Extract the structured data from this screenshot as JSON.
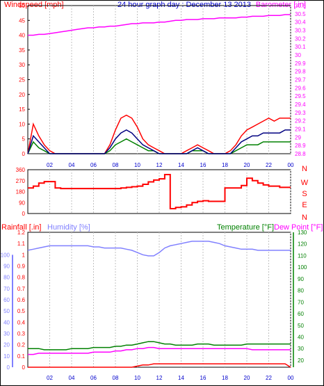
{
  "title": "24 hour graph day : December 13 2013",
  "colors": {
    "wind": "#ff0000",
    "gust": "#008000",
    "avg": "#000080",
    "baro": "#ff00ff",
    "dir": "#ff0000",
    "rain": "#ff0000",
    "humidity": "#8080ff",
    "temp": "#008000",
    "dew": "#ff00ff",
    "axis_blue": "#0000cc",
    "rain_axis": "#ff0000",
    "grid": "#c0c0c0"
  },
  "x_ticks": [
    "02",
    "04",
    "06",
    "08",
    "10",
    "12",
    "14",
    "16",
    "18",
    "20",
    "22",
    "00"
  ],
  "chart_data": [
    {
      "type": "line",
      "title": "",
      "left_axis_label": "Windspeed [mph]",
      "right_axis_label": "Barometer [.in]",
      "left_ticks": [
        "0",
        "5",
        "10",
        "15",
        "20",
        "25",
        "30",
        "35",
        "40",
        "45",
        "50"
      ],
      "right_ticks": [
        "28.8",
        "28.9",
        "29",
        "29.1",
        "29.2",
        "29.3",
        "29.4",
        "29.5",
        "29.6",
        "29.7",
        "29.8",
        "29.9",
        "30",
        "30.1",
        "30.2",
        "30.3",
        "30.4",
        "30.5",
        "30.6"
      ],
      "ylim_left": [
        0,
        50
      ],
      "ylim_right": [
        28.8,
        30.6
      ],
      "x_hours": [
        0,
        0.5,
        1,
        1.5,
        2,
        2.5,
        3,
        3.5,
        4,
        4.5,
        5,
        5.5,
        6,
        6.5,
        7,
        7.5,
        8,
        8.5,
        9,
        9.5,
        10,
        10.5,
        11,
        11.5,
        12,
        12.5,
        13,
        13.5,
        14,
        14.5,
        15,
        15.5,
        16,
        16.5,
        17,
        17.5,
        18,
        18.5,
        19,
        19.5,
        20,
        20.5,
        21,
        21.5,
        22,
        22.5,
        23,
        23.5,
        24
      ],
      "series": [
        {
          "key": "wind",
          "values": [
            0,
            10,
            6,
            3,
            1,
            0,
            0,
            0,
            0,
            0,
            0,
            0,
            0,
            0,
            0,
            3,
            8,
            12,
            13,
            12,
            9,
            5,
            3,
            2,
            1,
            0,
            0,
            0,
            0,
            1,
            2,
            3,
            2,
            1,
            0,
            0,
            0,
            1,
            3,
            6,
            8,
            9,
            10,
            11,
            12,
            11,
            12,
            12,
            12
          ]
        },
        {
          "key": "gust",
          "values": [
            0,
            4,
            2,
            1,
            0,
            0,
            0,
            0,
            0,
            0,
            0,
            0,
            0,
            0,
            0,
            1,
            3,
            4,
            5,
            4,
            3,
            2,
            1,
            1,
            0,
            0,
            0,
            0,
            0,
            0,
            1,
            1,
            1,
            0,
            0,
            0,
            0,
            0,
            1,
            2,
            3,
            3,
            3,
            4,
            4,
            4,
            4,
            4,
            4
          ]
        },
        {
          "key": "avg",
          "values": [
            0,
            6,
            4,
            2,
            0,
            0,
            0,
            0,
            0,
            0,
            0,
            0,
            0,
            0,
            0,
            2,
            5,
            7,
            8,
            7,
            5,
            3,
            2,
            1,
            0,
            0,
            0,
            0,
            0,
            0,
            1,
            2,
            1,
            0,
            0,
            0,
            0,
            0,
            2,
            4,
            5,
            6,
            6,
            7,
            7,
            7,
            7,
            8,
            8
          ]
        },
        {
          "key": "baro",
          "axis": "right",
          "values": [
            30.24,
            30.24,
            30.25,
            30.25,
            30.26,
            30.27,
            30.28,
            30.29,
            30.3,
            30.31,
            30.32,
            30.33,
            30.33,
            30.34,
            30.34,
            30.35,
            30.35,
            30.36,
            30.37,
            30.38,
            30.38,
            30.39,
            30.39,
            30.39,
            30.4,
            30.4,
            30.41,
            30.42,
            30.42,
            30.43,
            30.43,
            30.43,
            30.44,
            30.44,
            30.44,
            30.45,
            30.45,
            30.45,
            30.45,
            30.46,
            30.46,
            30.47,
            30.47,
            30.47,
            30.48,
            30.48,
            30.48,
            30.49,
            30.49
          ]
        }
      ]
    },
    {
      "type": "line",
      "title": "",
      "left_ticks": [
        "0",
        "90",
        "180",
        "270",
        "360"
      ],
      "right_labels": [
        "N",
        "W",
        "S",
        "E",
        "N"
      ],
      "ylim": [
        0,
        360
      ],
      "x_hours": [
        0,
        0.5,
        1,
        1.5,
        2,
        2.5,
        3,
        3.5,
        4,
        4.5,
        5,
        5.5,
        6,
        6.5,
        7,
        7.5,
        8,
        8.5,
        9,
        9.5,
        10,
        10.5,
        11,
        11.5,
        12,
        12.5,
        13,
        13.5,
        14,
        14.5,
        15,
        15.5,
        16,
        16.5,
        17,
        17.5,
        18,
        18.5,
        19,
        19.5,
        20,
        20.5,
        21,
        21.5,
        22,
        22.5,
        23,
        23.5,
        24
      ],
      "series": [
        {
          "key": "dir",
          "values": [
            210,
            225,
            250,
            262,
            262,
            210,
            205,
            205,
            205,
            205,
            205,
            205,
            205,
            205,
            205,
            205,
            205,
            210,
            215,
            220,
            225,
            240,
            260,
            275,
            285,
            320,
            40,
            50,
            55,
            70,
            90,
            100,
            105,
            100,
            100,
            100,
            210,
            210,
            210,
            230,
            290,
            270,
            250,
            235,
            225,
            225,
            215,
            215,
            215
          ]
        }
      ]
    },
    {
      "type": "line",
      "title": "",
      "labels": {
        "rain": "Rainfall [.in]",
        "humidity": "Humidity [%]",
        "temp": "Temperature [°F]",
        "dew": "Dew Point [°F]"
      },
      "rain_ticks": [
        "0",
        "0.1",
        "0.2",
        "0.3",
        "0.4",
        "0.5",
        "0.6",
        "0.7",
        "0.8",
        "0.9",
        "1",
        "1.1",
        "1.2"
      ],
      "humidity_ticks": [
        "0",
        "10",
        "20",
        "30",
        "40",
        "50",
        "60",
        "70",
        "80",
        "90",
        "100"
      ],
      "temp_ticks": [
        "20",
        "30",
        "40",
        "50",
        "60",
        "70",
        "80",
        "90",
        "100",
        "110",
        "120",
        "130"
      ],
      "ylim_rain": [
        0,
        1.2
      ],
      "ylim_temp": [
        14,
        130
      ],
      "x_hours": [
        0,
        0.5,
        1,
        1.5,
        2,
        2.5,
        3,
        3.5,
        4,
        4.5,
        5,
        5.5,
        6,
        6.5,
        7,
        7.5,
        8,
        8.5,
        9,
        9.5,
        10,
        10.5,
        11,
        11.5,
        12,
        12.5,
        13,
        13.5,
        14,
        14.5,
        15,
        15.5,
        16,
        16.5,
        17,
        17.5,
        18,
        18.5,
        19,
        19.5,
        20,
        20.5,
        21,
        21.5,
        22,
        22.5,
        23,
        23.5,
        24
      ],
      "series": [
        {
          "key": "humidity",
          "axis": "rain",
          "values": [
            1.04,
            1.05,
            1.06,
            1.07,
            1.08,
            1.08,
            1.08,
            1.08,
            1.08,
            1.08,
            1.08,
            1.08,
            1.07,
            1.07,
            1.06,
            1.06,
            1.06,
            1.06,
            1.05,
            1.04,
            1.02,
            1.0,
            0.99,
            0.99,
            1.02,
            1.06,
            1.08,
            1.09,
            1.1,
            1.11,
            1.12,
            1.12,
            1.12,
            1.12,
            1.11,
            1.1,
            1.08,
            1.07,
            1.06,
            1.05,
            1.05,
            1.05,
            1.04,
            1.04,
            1.04,
            1.04,
            1.04,
            1.04,
            1.04
          ]
        },
        {
          "key": "temp",
          "axis": "temp",
          "values": [
            30,
            30,
            30,
            29,
            29,
            29,
            29,
            29,
            30,
            30,
            30,
            30,
            31,
            31,
            31,
            31,
            32,
            32,
            33,
            33,
            34,
            35,
            36,
            36,
            35,
            34,
            34,
            33,
            33,
            33,
            33,
            34,
            34,
            34,
            33,
            33,
            33,
            33,
            33,
            33,
            34,
            34,
            34,
            34,
            34,
            34,
            34,
            34,
            34
          ]
        },
        {
          "key": "dew",
          "axis": "temp",
          "values": [
            25,
            25,
            26,
            26,
            26,
            26,
            26,
            26,
            26,
            26,
            26,
            26,
            27,
            27,
            27,
            27,
            28,
            28,
            29,
            29,
            30,
            30,
            31,
            31,
            30,
            30,
            30,
            30,
            30,
            30,
            30,
            30,
            30,
            30,
            30,
            30,
            30,
            30,
            30,
            30,
            30,
            29,
            29,
            29,
            29,
            29,
            29,
            29,
            29
          ]
        },
        {
          "key": "rain",
          "axis": "rain",
          "values": [
            0,
            0,
            0,
            0,
            0,
            0,
            0,
            0,
            0,
            0,
            0,
            0,
            0,
            0,
            0,
            0,
            0,
            0,
            0,
            0,
            0.01,
            0.02,
            0.02,
            0.03,
            0.03,
            0.03,
            0.03,
            0.03,
            0.03,
            0.03,
            0.03,
            0.03,
            0.03,
            0.03,
            0.03,
            0.03,
            0.03,
            0.03,
            0.03,
            0.03,
            0.03,
            0.03,
            0.03,
            0.03,
            0.03,
            0.03,
            0.03,
            0.03,
            0
          ]
        }
      ]
    }
  ]
}
